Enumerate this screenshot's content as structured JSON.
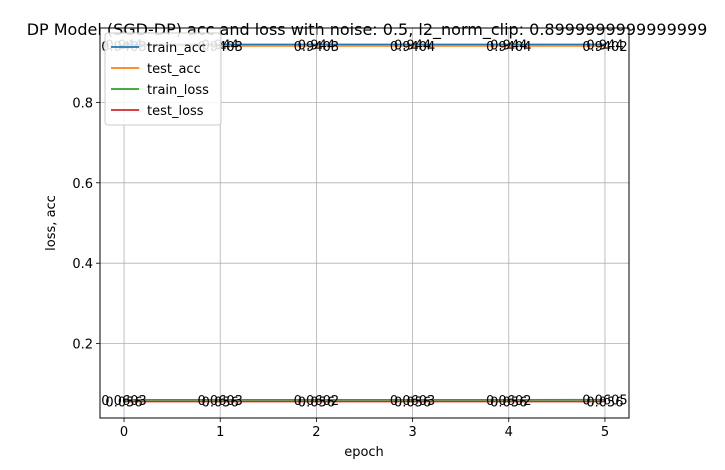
{
  "chart_data": {
    "type": "line",
    "title": "DP Model (SGD-DP) acc and loss with noise: 0.5, l2_norm_clip: 0.8999999999999999",
    "xlabel": "epoch",
    "ylabel": "loss, acc",
    "x": [
      0,
      1,
      2,
      3,
      4,
      5
    ],
    "xlim": [
      -0.25,
      5.25
    ],
    "ylim": [
      0.015,
      0.985
    ],
    "xticks": [
      0,
      1,
      2,
      3,
      4,
      5
    ],
    "yticks": [
      0.2,
      0.4,
      0.6,
      0.8
    ],
    "grid": true,
    "legend_position": "upper left",
    "series": [
      {
        "name": "train_acc",
        "color": "#1f77b4",
        "values": [
          0.944,
          0.944,
          0.944,
          0.944,
          0.944,
          0.944
        ],
        "labels": [
          "0.944",
          "0.944",
          "0.944",
          "0.944",
          "0.944",
          "0.944"
        ]
      },
      {
        "name": "test_acc",
        "color": "#ff7f0e",
        "values": [
          0.9403,
          0.9403,
          0.9403,
          0.9404,
          0.9404,
          0.9402
        ],
        "labels": [
          "0.9403",
          "0.9403",
          "0.9403",
          "0.9404",
          "0.9404",
          "0.9402"
        ]
      },
      {
        "name": "train_loss",
        "color": "#2ca02c",
        "values": [
          0.0603,
          0.0603,
          0.0602,
          0.0603,
          0.0602,
          0.0605
        ],
        "labels": [
          "0.0603",
          "0.0603",
          "0.0602",
          "0.0603",
          "0.0602",
          "0.0605"
        ]
      },
      {
        "name": "test_loss",
        "color": "#d62728",
        "values": [
          0.056,
          0.056,
          0.056,
          0.056,
          0.056,
          0.056
        ],
        "labels": [
          "0.056",
          "0.056",
          "0.056",
          "0.056",
          "0.056",
          "0.056"
        ]
      }
    ]
  }
}
